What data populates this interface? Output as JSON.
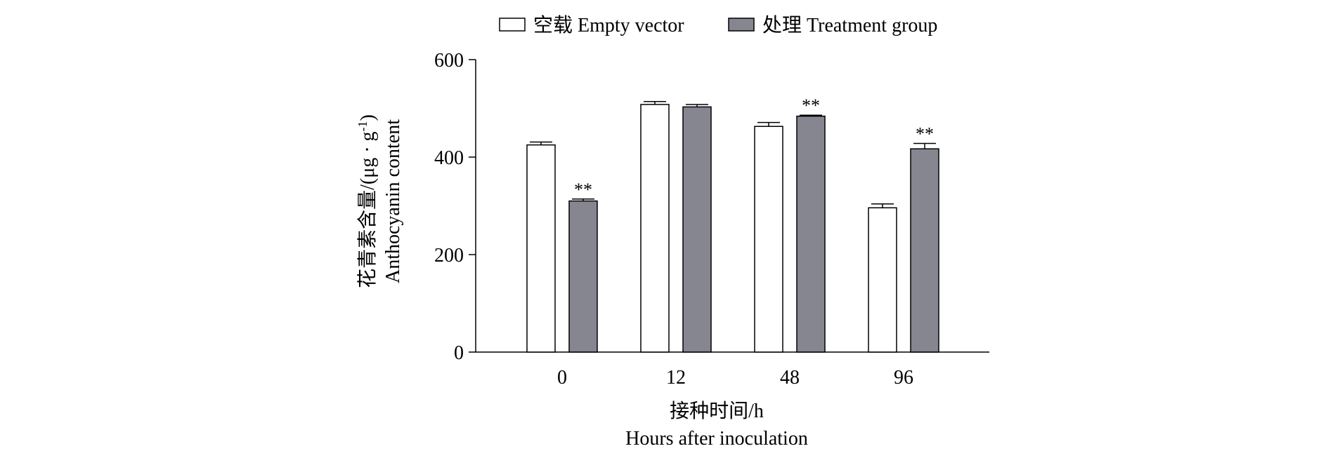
{
  "chart_data": {
    "type": "bar",
    "categories": [
      "0",
      "12",
      "48",
      "96"
    ],
    "series": [
      {
        "name": "空载 Empty vector",
        "values": [
          425,
          508,
          463,
          296
        ],
        "errors": [
          6,
          6,
          8,
          8
        ],
        "color": "#ffffff"
      },
      {
        "name": "处理 Treatment group",
        "values": [
          310,
          503,
          484,
          417
        ],
        "errors": [
          4,
          5,
          2,
          11
        ],
        "color": "#868690"
      }
    ],
    "significance": [
      {
        "series": 1,
        "category": 0,
        "label": "**"
      },
      {
        "series": 1,
        "category": 2,
        "label": "**"
      },
      {
        "series": 1,
        "category": 3,
        "label": "**"
      }
    ],
    "ylim": [
      0,
      600
    ],
    "yticks": [
      0,
      200,
      400,
      600
    ],
    "ylabel_cn": "花青素含量/(μg · g",
    "ylabel_sup": "-1",
    "ylabel_close": ")",
    "ylabel_en": "Anthocyanin content",
    "xlabel_cn": "接种时间/h",
    "xlabel_en": "Hours after inoculation",
    "legend_position": "top",
    "grid": false
  }
}
